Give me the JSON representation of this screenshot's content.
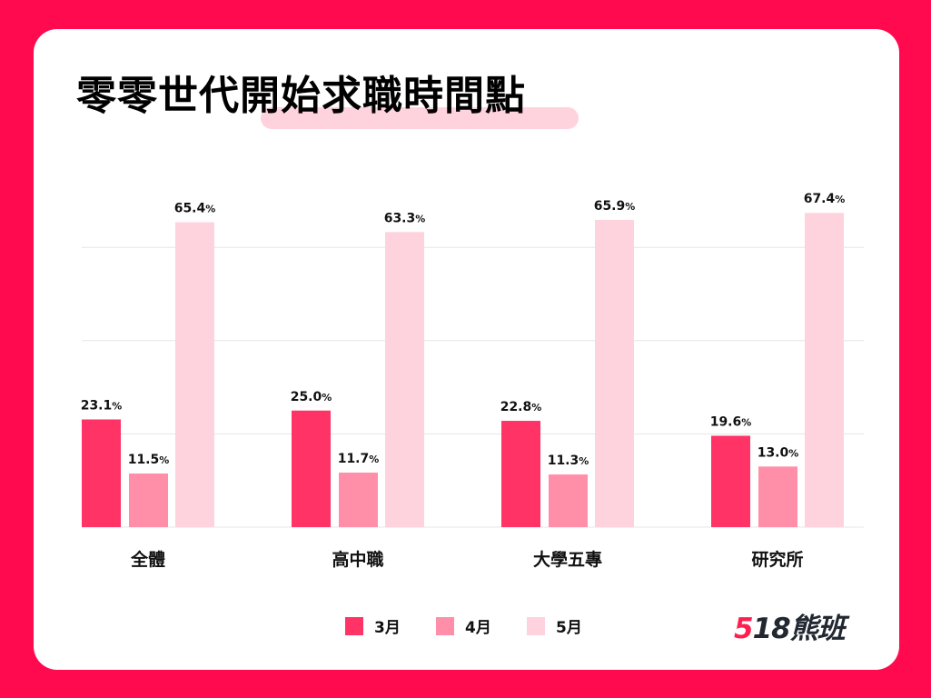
{
  "title": "零零世代開始求職時間點",
  "brand": {
    "logo_text": "518熊班"
  },
  "colors": {
    "background": "#FF0A4F",
    "march": "#FF3366",
    "april": "#FF8FA8",
    "may": "#FFD3DE",
    "grid": "#E5E5E5"
  },
  "chart_data": {
    "type": "bar",
    "title": "零零世代開始求職時間點",
    "categories": [
      "全體",
      "高中職",
      "大學五專",
      "研究所"
    ],
    "series": [
      {
        "name": "3月",
        "values": [
          23.1,
          25.0,
          22.8,
          19.6
        ]
      },
      {
        "name": "4月",
        "values": [
          11.5,
          11.7,
          11.3,
          13.0
        ]
      },
      {
        "name": "5月",
        "values": [
          65.4,
          63.3,
          65.9,
          67.4
        ]
      }
    ],
    "value_suffix": "%",
    "ylim": [
      0,
      70
    ],
    "gridlines": [
      0,
      20,
      40,
      60
    ],
    "grid": true,
    "y_tick_labels_shown": false,
    "legend": "bottom"
  }
}
